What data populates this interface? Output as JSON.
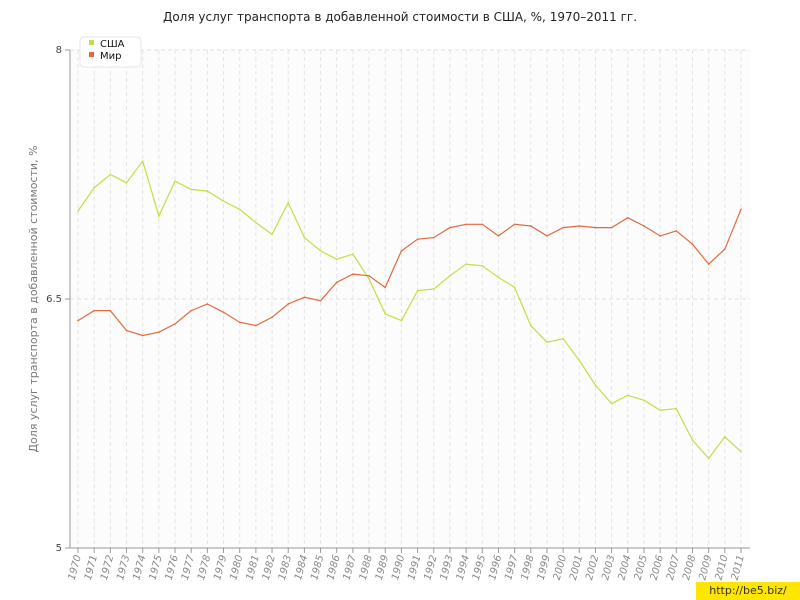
{
  "chart_data": {
    "type": "line",
    "title": "Доля услуг транспорта в добавленной стоимости в США, %, 1970–2011 гг.",
    "ylabel": "Доля услуг транспорта в добавленной стоимости, %",
    "xlabel": "",
    "ylim": [
      5,
      8
    ],
    "yticks": [
      "5",
      "6.5",
      "8"
    ],
    "legend_position": "top-left",
    "grid": true,
    "x": [
      "1970",
      "1971",
      "1972",
      "1973",
      "1974",
      "1975",
      "1976",
      "1977",
      "1978",
      "1979",
      "1980",
      "1981",
      "1982",
      "1983",
      "1984",
      "1985",
      "1986",
      "1987",
      "1988",
      "1989",
      "1990",
      "1991",
      "1992",
      "1993",
      "1994",
      "1995",
      "1996",
      "1997",
      "1998",
      "1999",
      "2000",
      "2001",
      "2002",
      "2003",
      "2004",
      "2005",
      "2006",
      "2007",
      "2008",
      "2009",
      "2010",
      "2011"
    ],
    "series": [
      {
        "name": "США",
        "color": "#c8dc46",
        "values": [
          7.03,
          7.17,
          7.25,
          7.2,
          7.33,
          7.0,
          7.21,
          7.16,
          7.15,
          7.09,
          7.04,
          6.96,
          6.89,
          7.08,
          6.87,
          6.79,
          6.74,
          6.77,
          6.62,
          6.41,
          6.37,
          6.55,
          6.56,
          6.64,
          6.71,
          6.7,
          6.63,
          6.57,
          6.34,
          6.24,
          6.26,
          6.13,
          5.98,
          5.87,
          5.92,
          5.89,
          5.83,
          5.84,
          5.65,
          5.54,
          5.67,
          5.58
        ]
      },
      {
        "name": "Мир",
        "color": "#e06a40",
        "values": [
          6.37,
          6.43,
          6.43,
          6.31,
          6.28,
          6.3,
          6.35,
          6.43,
          6.47,
          6.42,
          6.36,
          6.34,
          6.39,
          6.47,
          6.51,
          6.49,
          6.6,
          6.65,
          6.64,
          6.57,
          6.79,
          6.86,
          6.87,
          6.93,
          6.95,
          6.95,
          6.88,
          6.95,
          6.94,
          6.88,
          6.93,
          6.94,
          6.93,
          6.93,
          6.99,
          6.94,
          6.88,
          6.91,
          6.83,
          6.71,
          6.8,
          7.04
        ]
      }
    ]
  },
  "watermark": "http://be5.biz/"
}
